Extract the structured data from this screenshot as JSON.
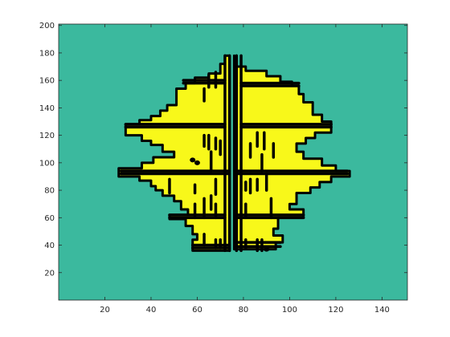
{
  "chart_data": {
    "type": "heatmap",
    "title": "",
    "xlabel": "",
    "ylabel": "",
    "xlim": [
      0,
      151
    ],
    "ylim": [
      0,
      201
    ],
    "x_ticks": [
      20,
      40,
      60,
      80,
      100,
      120,
      140
    ],
    "y_ticks": [
      20,
      40,
      60,
      80,
      100,
      120,
      140,
      160,
      180,
      200
    ],
    "grid": false,
    "legend": "none",
    "colors": {
      "background": "#3bb99e",
      "fill": "#f8f81a",
      "contour": "#000000",
      "axes": "#262626"
    },
    "regions": [
      {
        "name": "left-half",
        "polygon": [
          [
            74,
            178
          ],
          [
            72,
            178
          ],
          [
            72,
            172
          ],
          [
            70,
            172
          ],
          [
            70,
            165
          ],
          [
            65,
            165
          ],
          [
            65,
            162
          ],
          [
            59,
            162
          ],
          [
            59,
            158
          ],
          [
            55,
            158
          ],
          [
            55,
            154
          ],
          [
            51,
            154
          ],
          [
            51,
            142
          ],
          [
            47,
            142
          ],
          [
            47,
            138
          ],
          [
            44,
            138
          ],
          [
            44,
            134
          ],
          [
            40,
            134
          ],
          [
            40,
            131
          ],
          [
            35,
            131
          ],
          [
            35,
            128
          ],
          [
            29,
            128
          ],
          [
            29,
            120
          ],
          [
            36,
            120
          ],
          [
            36,
            116
          ],
          [
            40,
            116
          ],
          [
            40,
            113
          ],
          [
            45,
            113
          ],
          [
            45,
            108
          ],
          [
            50,
            108
          ],
          [
            50,
            104
          ],
          [
            41,
            104
          ],
          [
            41,
            100
          ],
          [
            36,
            100
          ],
          [
            36,
            96
          ],
          [
            26,
            96
          ],
          [
            26,
            90
          ],
          [
            35,
            90
          ],
          [
            35,
            87
          ],
          [
            40,
            87
          ],
          [
            40,
            83
          ],
          [
            42,
            83
          ],
          [
            42,
            80
          ],
          [
            45,
            80
          ],
          [
            45,
            76
          ],
          [
            50,
            76
          ],
          [
            50,
            72
          ],
          [
            53,
            72
          ],
          [
            53,
            66
          ],
          [
            56,
            66
          ],
          [
            56,
            62
          ],
          [
            48,
            62
          ],
          [
            48,
            59
          ],
          [
            55,
            59
          ],
          [
            55,
            54
          ],
          [
            58,
            54
          ],
          [
            58,
            48
          ],
          [
            60,
            48
          ],
          [
            60,
            44
          ],
          [
            58,
            44
          ],
          [
            58,
            36
          ],
          [
            74,
            36
          ]
        ]
      },
      {
        "name": "right-half",
        "polygon": [
          [
            76,
            178
          ],
          [
            76,
            170
          ],
          [
            81,
            170
          ],
          [
            81,
            167
          ],
          [
            90,
            167
          ],
          [
            90,
            163
          ],
          [
            96,
            163
          ],
          [
            96,
            159
          ],
          [
            101,
            159
          ],
          [
            101,
            156
          ],
          [
            104,
            156
          ],
          [
            104,
            150
          ],
          [
            106,
            150
          ],
          [
            106,
            144
          ],
          [
            110,
            144
          ],
          [
            110,
            135
          ],
          [
            114,
            135
          ],
          [
            114,
            130
          ],
          [
            118,
            130
          ],
          [
            118,
            122
          ],
          [
            111,
            122
          ],
          [
            111,
            118
          ],
          [
            107,
            118
          ],
          [
            107,
            114
          ],
          [
            103,
            114
          ],
          [
            103,
            108
          ],
          [
            106,
            108
          ],
          [
            106,
            103
          ],
          [
            114,
            103
          ],
          [
            114,
            98
          ],
          [
            120,
            98
          ],
          [
            120,
            94
          ],
          [
            126,
            94
          ],
          [
            126,
            90
          ],
          [
            118,
            90
          ],
          [
            118,
            86
          ],
          [
            113,
            86
          ],
          [
            113,
            82
          ],
          [
            109,
            82
          ],
          [
            109,
            78
          ],
          [
            103,
            78
          ],
          [
            103,
            70
          ],
          [
            100,
            70
          ],
          [
            100,
            66
          ],
          [
            106,
            66
          ],
          [
            106,
            60
          ],
          [
            95,
            60
          ],
          [
            95,
            52
          ],
          [
            93,
            52
          ],
          [
            93,
            47
          ],
          [
            97,
            47
          ],
          [
            97,
            42
          ],
          [
            94,
            42
          ],
          [
            94,
            37
          ],
          [
            76,
            37
          ]
        ]
      }
    ],
    "contour_lines": [
      {
        "x": [
          27,
          74
        ],
        "y": [
          92,
          92
        ]
      },
      {
        "x": [
          27,
          74
        ],
        "y": [
          94,
          94
        ]
      },
      {
        "x": [
          77,
          125
        ],
        "y": [
          92,
          92
        ]
      },
      {
        "x": [
          77,
          125
        ],
        "y": [
          94,
          94
        ]
      },
      {
        "x": [
          29,
          72
        ],
        "y": [
          128,
          128
        ]
      },
      {
        "x": [
          29,
          72
        ],
        "y": [
          126,
          126
        ]
      },
      {
        "x": [
          79,
          118
        ],
        "y": [
          128,
          128
        ]
      },
      {
        "x": [
          79,
          118
        ],
        "y": [
          126,
          126
        ]
      },
      {
        "x": [
          48,
          72
        ],
        "y": [
          62,
          62
        ]
      },
      {
        "x": [
          48,
          72
        ],
        "y": [
          60,
          60
        ]
      },
      {
        "x": [
          77,
          106
        ],
        "y": [
          62,
          62
        ]
      },
      {
        "x": [
          77,
          106
        ],
        "y": [
          60,
          60
        ]
      },
      {
        "x": [
          58,
          74
        ],
        "y": [
          40,
          40
        ]
      },
      {
        "x": [
          58,
          74
        ],
        "y": [
          38,
          38
        ]
      },
      {
        "x": [
          77,
          96
        ],
        "y": [
          42,
          42
        ]
      },
      {
        "x": [
          77,
          96
        ],
        "y": [
          39,
          39
        ]
      },
      {
        "x": [
          54,
          72
        ],
        "y": [
          160,
          160
        ]
      },
      {
        "x": [
          54,
          72
        ],
        "y": [
          158,
          158
        ]
      },
      {
        "x": [
          79,
          104
        ],
        "y": [
          158,
          158
        ]
      },
      {
        "x": [
          79,
          104
        ],
        "y": [
          156,
          156
        ]
      },
      {
        "x": [
          72,
          72
        ],
        "y": [
          178,
          36
        ]
      },
      {
        "x": [
          74,
          74
        ],
        "y": [
          178,
          36
        ]
      },
      {
        "x": [
          77,
          77
        ],
        "y": [
          178,
          36
        ]
      },
      {
        "x": [
          79,
          79
        ],
        "y": [
          178,
          36
        ]
      },
      {
        "x": [
          65,
          65
        ],
        "y": [
          164,
          155
        ]
      },
      {
        "x": [
          68,
          68
        ],
        "y": [
          166,
          155
        ]
      },
      {
        "x": [
          63,
          63
        ],
        "y": [
          154,
          145
        ]
      },
      {
        "x": [
          63,
          63
        ],
        "y": [
          120,
          112
        ]
      },
      {
        "x": [
          65,
          65
        ],
        "y": [
          120,
          110
        ]
      },
      {
        "x": [
          68,
          68
        ],
        "y": [
          118,
          110
        ]
      },
      {
        "x": [
          70,
          70
        ],
        "y": [
          116,
          106
        ]
      },
      {
        "x": [
          66,
          66
        ],
        "y": [
          108,
          94
        ]
      },
      {
        "x": [
          48,
          48
        ],
        "y": [
          88,
          78
        ]
      },
      {
        "x": [
          59,
          59
        ],
        "y": [
          84,
          78
        ]
      },
      {
        "x": [
          68,
          68
        ],
        "y": [
          88,
          77
        ]
      },
      {
        "x": [
          66,
          66
        ],
        "y": [
          76,
          66
        ]
      },
      {
        "x": [
          59,
          59
        ],
        "y": [
          70,
          60
        ]
      },
      {
        "x": [
          63,
          63
        ],
        "y": [
          74,
          60
        ]
      },
      {
        "x": [
          68,
          68
        ],
        "y": [
          70,
          60
        ]
      },
      {
        "x": [
          63,
          63
        ],
        "y": [
          48,
          40
        ]
      },
      {
        "x": [
          68,
          68
        ],
        "y": [
          44,
          38
        ]
      },
      {
        "x": [
          70,
          70
        ],
        "y": [
          44,
          38
        ]
      },
      {
        "x": [
          86,
          86
        ],
        "y": [
          122,
          112
        ]
      },
      {
        "x": [
          89,
          89
        ],
        "y": [
          122,
          110
        ]
      },
      {
        "x": [
          83,
          83
        ],
        "y": [
          114,
          104
        ]
      },
      {
        "x": [
          88,
          88
        ],
        "y": [
          106,
          94
        ]
      },
      {
        "x": [
          93,
          93
        ],
        "y": [
          114,
          104
        ]
      },
      {
        "x": [
          83,
          83
        ],
        "y": [
          88,
          78
        ]
      },
      {
        "x": [
          86,
          86
        ],
        "y": [
          88,
          80
        ]
      },
      {
        "x": [
          90,
          90
        ],
        "y": [
          92,
          80
        ]
      },
      {
        "x": [
          81,
          81
        ],
        "y": [
          86,
          80
        ]
      },
      {
        "x": [
          81,
          81
        ],
        "y": [
          70,
          60
        ]
      },
      {
        "x": [
          92,
          92
        ],
        "y": [
          74,
          60
        ]
      },
      {
        "x": [
          81,
          81
        ],
        "y": [
          44,
          38
        ]
      },
      {
        "x": [
          86,
          86
        ],
        "y": [
          44,
          36
        ]
      },
      {
        "x": [
          88,
          88
        ],
        "y": [
          44,
          36
        ]
      }
    ],
    "blobs": [
      {
        "x": 58,
        "y": 102
      },
      {
        "x": 60,
        "y": 100
      },
      {
        "x": 90,
        "y": 37
      }
    ]
  }
}
